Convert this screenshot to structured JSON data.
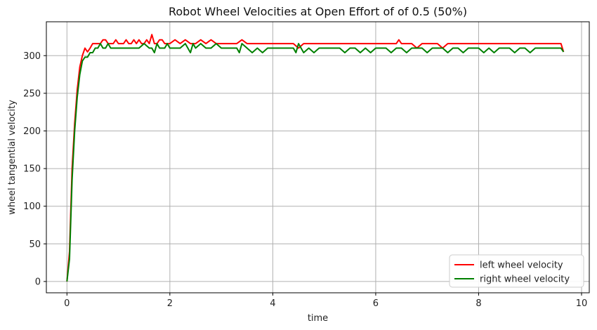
{
  "chart_data": {
    "type": "line",
    "title": "Robot Wheel Velocities at Open Effort of of 0.5 (50%)",
    "xlabel": "time",
    "ylabel": "wheel tangential velocity",
    "xlim": [
      -0.4,
      10.15
    ],
    "ylim": [
      -15,
      345
    ],
    "xticks": [
      0,
      2,
      4,
      6,
      8,
      10
    ],
    "yticks": [
      0,
      50,
      100,
      150,
      200,
      250,
      300
    ],
    "grid": true,
    "legend_position": "bottom-right",
    "series": [
      {
        "name": "left wheel velocity",
        "color": "#ff0000",
        "x": [
          0,
          0.05,
          0.1,
          0.15,
          0.2,
          0.25,
          0.3,
          0.35,
          0.4,
          0.45,
          0.5,
          0.55,
          0.6,
          0.65,
          0.7,
          0.75,
          0.8,
          0.85,
          0.9,
          0.95,
          1.0,
          1.05,
          1.1,
          1.15,
          1.2,
          1.25,
          1.3,
          1.35,
          1.4,
          1.45,
          1.5,
          1.55,
          1.6,
          1.65,
          1.7,
          1.75,
          1.8,
          1.85,
          1.9,
          1.95,
          2.0,
          2.1,
          2.2,
          2.3,
          2.4,
          2.5,
          2.6,
          2.7,
          2.8,
          2.9,
          3.0,
          3.1,
          3.2,
          3.3,
          3.4,
          3.5,
          3.6,
          3.7,
          3.8,
          3.9,
          4.0,
          4.1,
          4.2,
          4.3,
          4.4,
          4.5,
          4.6,
          4.7,
          4.8,
          4.9,
          5.0,
          5.1,
          5.2,
          5.3,
          5.4,
          5.5,
          5.6,
          5.7,
          5.8,
          5.9,
          6.0,
          6.1,
          6.2,
          6.3,
          6.4,
          6.45,
          6.5,
          6.6,
          6.7,
          6.8,
          6.9,
          7.0,
          7.1,
          7.2,
          7.3,
          7.4,
          7.5,
          7.6,
          7.7,
          7.8,
          7.9,
          8.0,
          8.1,
          8.2,
          8.3,
          8.4,
          8.5,
          8.6,
          8.7,
          8.8,
          8.9,
          9.0,
          9.1,
          9.2,
          9.3,
          9.4,
          9.5,
          9.55,
          9.6,
          9.65
        ],
        "y": [
          0,
          40,
          150,
          210,
          255,
          285,
          300,
          310,
          305,
          310,
          316,
          316,
          316,
          316,
          321,
          321,
          316,
          316,
          316,
          321,
          316,
          316,
          316,
          321,
          316,
          316,
          321,
          316,
          321,
          316,
          316,
          321,
          316,
          328,
          316,
          316,
          321,
          321,
          316,
          316,
          316,
          321,
          316,
          321,
          316,
          316,
          321,
          316,
          321,
          316,
          316,
          316,
          316,
          316,
          321,
          316,
          316,
          316,
          316,
          316,
          316,
          316,
          316,
          316,
          316,
          310,
          316,
          316,
          316,
          316,
          316,
          316,
          316,
          316,
          316,
          316,
          316,
          316,
          316,
          316,
          316,
          316,
          316,
          316,
          316,
          321,
          316,
          316,
          316,
          310,
          316,
          316,
          316,
          316,
          310,
          316,
          316,
          316,
          316,
          316,
          316,
          316,
          316,
          316,
          316,
          316,
          316,
          316,
          316,
          316,
          316,
          316,
          316,
          316,
          316,
          316,
          316,
          316,
          316,
          305
        ]
      },
      {
        "name": "right wheel velocity",
        "color": "#008000",
        "x": [
          0,
          0.05,
          0.1,
          0.15,
          0.2,
          0.25,
          0.3,
          0.35,
          0.4,
          0.45,
          0.5,
          0.55,
          0.6,
          0.65,
          0.7,
          0.75,
          0.8,
          0.85,
          0.9,
          0.95,
          1.0,
          1.1,
          1.2,
          1.3,
          1.4,
          1.5,
          1.6,
          1.65,
          1.7,
          1.75,
          1.8,
          1.85,
          1.9,
          1.95,
          2.0,
          2.1,
          2.2,
          2.3,
          2.4,
          2.45,
          2.5,
          2.6,
          2.7,
          2.8,
          2.9,
          3.0,
          3.1,
          3.2,
          3.3,
          3.35,
          3.4,
          3.5,
          3.6,
          3.7,
          3.8,
          3.9,
          4.0,
          4.1,
          4.2,
          4.3,
          4.4,
          4.45,
          4.5,
          4.6,
          4.7,
          4.8,
          4.9,
          5.0,
          5.1,
          5.2,
          5.3,
          5.4,
          5.5,
          5.6,
          5.7,
          5.8,
          5.9,
          6.0,
          6.1,
          6.2,
          6.3,
          6.4,
          6.5,
          6.6,
          6.7,
          6.8,
          6.9,
          7.0,
          7.1,
          7.2,
          7.3,
          7.4,
          7.5,
          7.6,
          7.7,
          7.8,
          7.9,
          8.0,
          8.1,
          8.2,
          8.3,
          8.4,
          8.5,
          8.6,
          8.7,
          8.8,
          8.9,
          9.0,
          9.1,
          9.2,
          9.3,
          9.4,
          9.5,
          9.55,
          9.6,
          9.65
        ],
        "y": [
          0,
          30,
          135,
          200,
          245,
          275,
          293,
          298,
          298,
          304,
          304,
          310,
          310,
          316,
          310,
          310,
          316,
          310,
          310,
          310,
          310,
          310,
          310,
          310,
          310,
          316,
          310,
          310,
          304,
          316,
          310,
          310,
          310,
          316,
          310,
          310,
          310,
          316,
          304,
          316,
          310,
          316,
          310,
          310,
          316,
          310,
          310,
          310,
          310,
          304,
          316,
          310,
          304,
          310,
          304,
          310,
          310,
          310,
          310,
          310,
          310,
          304,
          316,
          304,
          310,
          304,
          310,
          310,
          310,
          310,
          310,
          304,
          310,
          310,
          304,
          310,
          304,
          310,
          310,
          310,
          304,
          310,
          310,
          304,
          310,
          310,
          310,
          304,
          310,
          310,
          310,
          304,
          310,
          310,
          304,
          310,
          310,
          310,
          304,
          310,
          304,
          310,
          310,
          310,
          304,
          310,
          310,
          304,
          310,
          310,
          310,
          310,
          310,
          310,
          310,
          305
        ]
      }
    ]
  }
}
